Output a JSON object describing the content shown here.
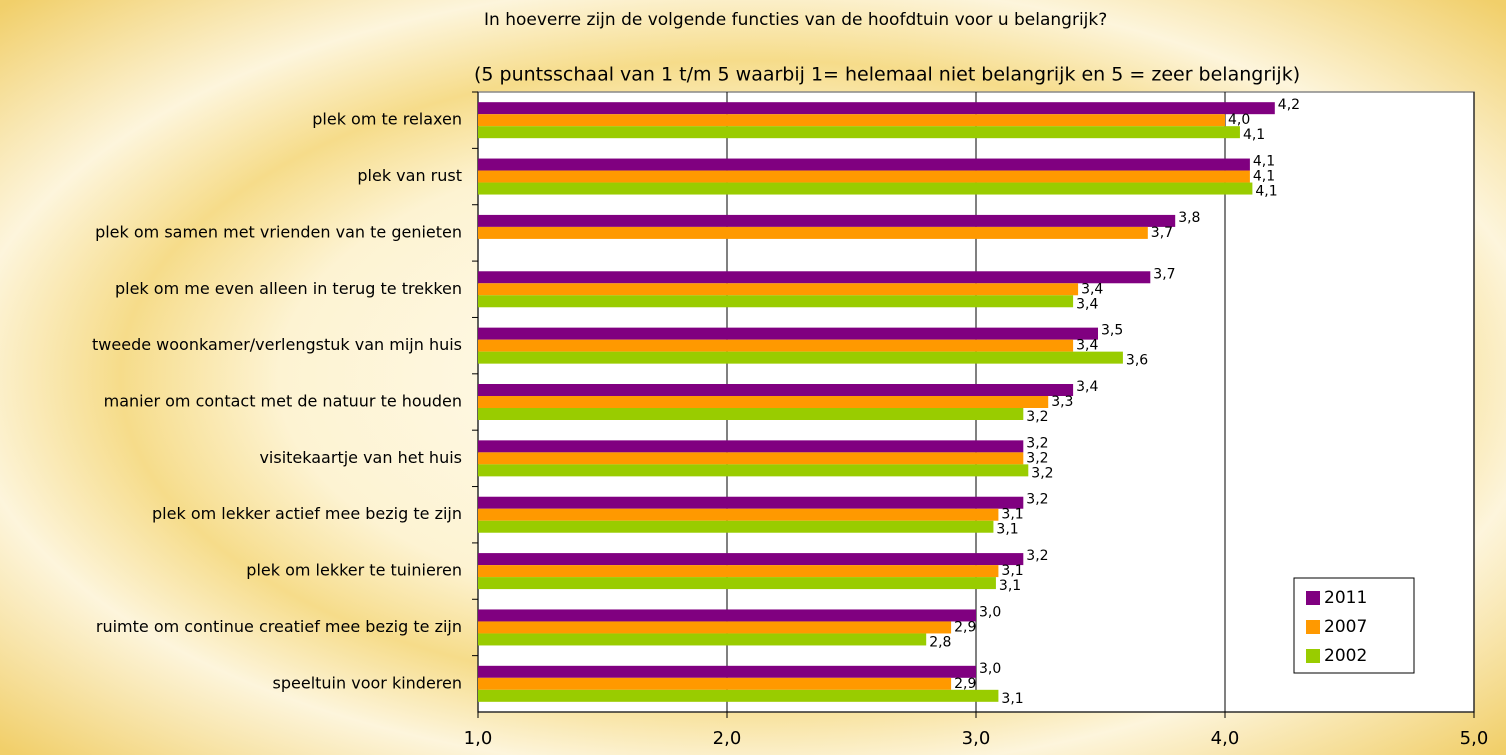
{
  "chart_data": {
    "type": "bar",
    "orientation": "horizontal",
    "title": "In hoeverre zijn de volgende functies van de hoofdtuin voor u belangrijk?",
    "subtitle": "(5 puntsschaal van 1 t/m 5 waarbij 1= helemaal niet belangrijk en 5 = zeer belangrijk)",
    "categories": [
      "plek om te relaxen",
      "plek van rust",
      "plek om samen met vrienden van te genieten",
      "plek om me even alleen in terug te trekken",
      "tweede woonkamer/verlengstuk van mijn huis",
      "manier om contact met de natuur te houden",
      "visitekaartje van het huis",
      "plek om lekker actief mee bezig te zijn",
      "plek om lekker te tuinieren",
      "ruimte om continue creatief mee bezig te zijn",
      "speeltuin voor kinderen"
    ],
    "series": [
      {
        "name": "2011",
        "color": "#800080",
        "values": [
          4.2,
          4.1,
          3.8,
          3.7,
          3.49,
          3.39,
          3.19,
          3.19,
          3.19,
          3.0,
          3.0
        ],
        "value_labels": [
          "4,2",
          "4,1",
          "3,8",
          "3,7",
          "3,5",
          "3,4",
          "3,2",
          "3,2",
          "3,2",
          "3,0",
          "3,0"
        ]
      },
      {
        "name": "2007",
        "color": "#ff9900",
        "values": [
          4.0,
          4.1,
          3.69,
          3.41,
          3.39,
          3.29,
          3.19,
          3.09,
          3.09,
          2.9,
          2.9
        ],
        "value_labels": [
          "4,0",
          "4,1",
          "3,7",
          "3,4",
          "3,4",
          "3,3",
          "3,2",
          "3,1",
          "3,1",
          "2,9",
          "2,9"
        ]
      },
      {
        "name": "2002",
        "color": "#99cc00",
        "values": [
          4.06,
          4.11,
          null,
          3.39,
          3.59,
          3.19,
          3.21,
          3.07,
          3.08,
          2.8,
          3.09
        ],
        "value_labels": [
          "4,1",
          "4,1",
          null,
          "3,4",
          "3,6",
          "3,2",
          "3,2",
          "3,1",
          "3,1",
          "2,8",
          "3,1"
        ]
      }
    ],
    "xlim": [
      1,
      5
    ],
    "xticks": [
      {
        "value": 1,
        "label": "1,0"
      },
      {
        "value": 2,
        "label": "2,0"
      },
      {
        "value": 3,
        "label": "3,0"
      },
      {
        "value": 4,
        "label": "4,0"
      },
      {
        "value": 5,
        "label": "5,0"
      }
    ],
    "grid": true,
    "legend": "lower right"
  }
}
